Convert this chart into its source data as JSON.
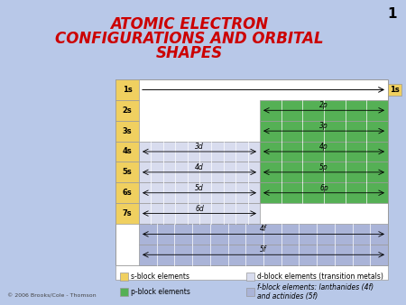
{
  "title_line1": "ATOMIC ELECTRON",
  "title_line2": "CONFIGURATIONS AND ORBITAL",
  "title_line3": "SHAPES",
  "title_color": "#cc0000",
  "bg_color": "#b8c8e8",
  "table_bg": "#ffffff",
  "slide_number": "1",
  "copyright": "© 2006 Brooks/Cole - Thomson",
  "s_color": "#f0d060",
  "p_color": "#55b055",
  "d_color": "#d8dcee",
  "f_color": "#aab4d8",
  "white": "#ffffff",
  "border_color": "#999999",
  "row_labels": [
    "1s",
    "2s",
    "3s",
    "4s",
    "5s",
    "6s",
    "7s"
  ],
  "d_labels": [
    "3d",
    "4d",
    "5d",
    "6d"
  ],
  "p_labels": [
    "2p",
    "3p",
    "4p",
    "5p",
    "6p"
  ],
  "f_labels": [
    "4f",
    "5f"
  ],
  "legend": [
    {
      "label": "s-block elements",
      "color": "#f0d060",
      "col": 0
    },
    {
      "label": "p-block elements",
      "color": "#55b055",
      "col": 0
    },
    {
      "label": "d-block elements (transition metals)",
      "color": "#d8dcee",
      "col": 1
    },
    {
      "label": "f-block elements: lanthanides (4f)\nand actinides (5f)",
      "color": "#aab4d8",
      "col": 1
    }
  ]
}
